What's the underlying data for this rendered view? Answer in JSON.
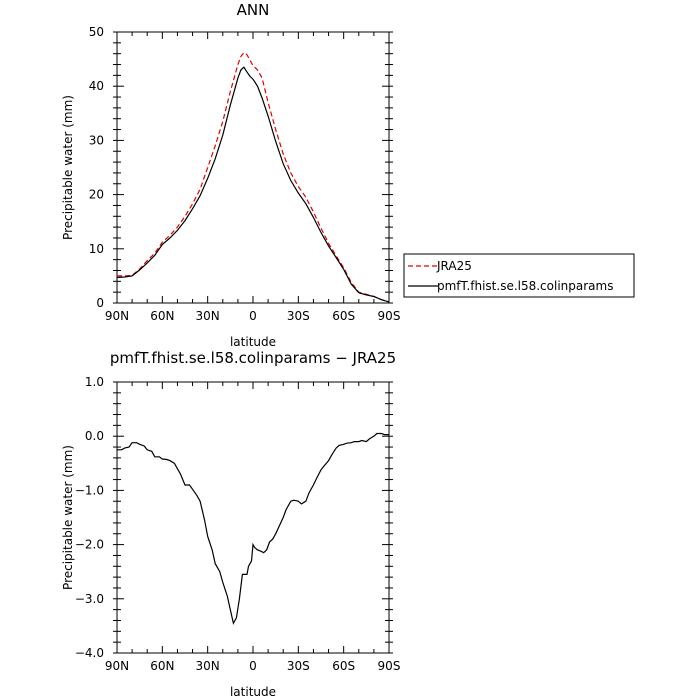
{
  "chart_data": [
    {
      "type": "line",
      "title": "ANN",
      "xlabel": "latitude",
      "ylabel": "Precipitable water (mm)",
      "xlim": [
        90,
        -90
      ],
      "ylim": [
        0,
        50
      ],
      "x_ticks": [
        90,
        60,
        30,
        0,
        -30,
        -60,
        -90
      ],
      "x_tick_labels": [
        "90N",
        "60N",
        "30N",
        "0",
        "30S",
        "60S",
        "90S"
      ],
      "y_ticks": [
        0,
        10,
        20,
        30,
        40,
        50
      ],
      "y_tick_labels": [
        "0",
        "10",
        "20",
        "30",
        "40",
        "50"
      ],
      "legend_position": "right",
      "series": [
        {
          "name": "JRA25",
          "color": "#e00000",
          "style": "dashed",
          "x": [
            90,
            85,
            80,
            75,
            70,
            65,
            60,
            55,
            50,
            45,
            40,
            35,
            30,
            25,
            20,
            15,
            10,
            8,
            6,
            4,
            2,
            0,
            -3,
            -6,
            -10,
            -15,
            -20,
            -25,
            -30,
            -35,
            -40,
            -45,
            -50,
            -55,
            -60,
            -65,
            -70,
            -75,
            -80,
            -85,
            -90
          ],
          "values": [
            5.0,
            5.0,
            5.1,
            6.3,
            7.8,
            9.2,
            11.2,
            12.5,
            14.0,
            16.0,
            18.3,
            21.0,
            25.0,
            29.0,
            33.5,
            39.0,
            44.0,
            45.5,
            46.2,
            45.8,
            44.8,
            43.8,
            43.0,
            41.5,
            37.0,
            32.0,
            27.5,
            24.0,
            21.5,
            19.5,
            16.8,
            13.8,
            11.0,
            8.7,
            6.5,
            3.8,
            2.0,
            1.6,
            1.2,
            0.6,
            0.2
          ]
        },
        {
          "name": "pmfT.fhist.se.l58.colinparams",
          "color": "#000000",
          "style": "solid",
          "x": [
            90,
            85,
            80,
            75,
            70,
            65,
            60,
            55,
            50,
            45,
            40,
            35,
            30,
            25,
            20,
            15,
            10,
            8,
            6,
            4,
            2,
            0,
            -3,
            -6,
            -10,
            -15,
            -20,
            -25,
            -30,
            -35,
            -40,
            -45,
            -50,
            -55,
            -60,
            -65,
            -70,
            -75,
            -80,
            -85,
            -90
          ],
          "values": [
            4.7,
            4.8,
            5.0,
            6.1,
            7.4,
            8.8,
            10.8,
            12.0,
            13.4,
            15.2,
            17.4,
            19.8,
            23.0,
            26.6,
            31.0,
            36.5,
            41.5,
            43.0,
            43.5,
            42.6,
            41.8,
            41.3,
            40.0,
            37.8,
            34.5,
            29.8,
            25.7,
            22.6,
            20.3,
            18.3,
            15.8,
            13.0,
            10.5,
            8.4,
            6.2,
            3.5,
            1.9,
            1.5,
            1.2,
            0.6,
            0.2
          ]
        }
      ]
    },
    {
      "type": "line",
      "title": "pmfT.fhist.se.l58.colinparams  −  JRA25",
      "xlabel": "latitude",
      "ylabel": "Precipitable water (mm)",
      "xlim": [
        90,
        -90
      ],
      "ylim": [
        -4,
        1
      ],
      "x_ticks": [
        90,
        60,
        30,
        0,
        -30,
        -60,
        -90
      ],
      "x_tick_labels": [
        "90N",
        "60N",
        "30N",
        "0",
        "30S",
        "60S",
        "90S"
      ],
      "y_ticks": [
        1,
        0,
        -1,
        -2,
        -3,
        -4
      ],
      "y_tick_labels": [
        "1.0",
        "0.0",
        "−1.0",
        "−2.0",
        "−3.0",
        "−4.0"
      ],
      "series": [
        {
          "color": "#000000",
          "style": "solid",
          "x": [
            90,
            87,
            85,
            82,
            80,
            77,
            75,
            72,
            70,
            67,
            65,
            62,
            60,
            57,
            55,
            52,
            50,
            48,
            45,
            42,
            40,
            37,
            35,
            32,
            30,
            27,
            25,
            22,
            20,
            17,
            15,
            13,
            11,
            9,
            7,
            5,
            4,
            3,
            1,
            0,
            -1,
            -3,
            -5,
            -7,
            -9,
            -11,
            -13,
            -15,
            -17,
            -20,
            -22,
            -25,
            -27,
            -30,
            -32,
            -35,
            -37,
            -40,
            -42,
            -45,
            -47,
            -50,
            -52,
            -55,
            -57,
            -60,
            -62,
            -65,
            -67,
            -70,
            -72,
            -75,
            -77,
            -80,
            -82,
            -85,
            -87,
            -90
          ],
          "values": [
            -0.25,
            -0.25,
            -0.22,
            -0.2,
            -0.12,
            -0.12,
            -0.15,
            -0.18,
            -0.25,
            -0.28,
            -0.38,
            -0.38,
            -0.42,
            -0.43,
            -0.45,
            -0.5,
            -0.6,
            -0.7,
            -0.9,
            -0.9,
            -0.98,
            -1.1,
            -1.2,
            -1.55,
            -1.85,
            -2.1,
            -2.35,
            -2.5,
            -2.7,
            -2.95,
            -3.2,
            -3.45,
            -3.35,
            -3.0,
            -2.55,
            -2.55,
            -2.55,
            -2.4,
            -2.3,
            -2.0,
            -2.05,
            -2.1,
            -2.12,
            -2.15,
            -2.1,
            -1.95,
            -1.9,
            -1.8,
            -1.68,
            -1.5,
            -1.35,
            -1.2,
            -1.18,
            -1.2,
            -1.25,
            -1.2,
            -1.05,
            -0.9,
            -0.78,
            -0.62,
            -0.55,
            -0.45,
            -0.35,
            -0.22,
            -0.17,
            -0.15,
            -0.13,
            -0.12,
            -0.1,
            -0.1,
            -0.08,
            -0.1,
            -0.05,
            0.0,
            0.05,
            0.05,
            0.03,
            0.03
          ]
        }
      ]
    }
  ]
}
